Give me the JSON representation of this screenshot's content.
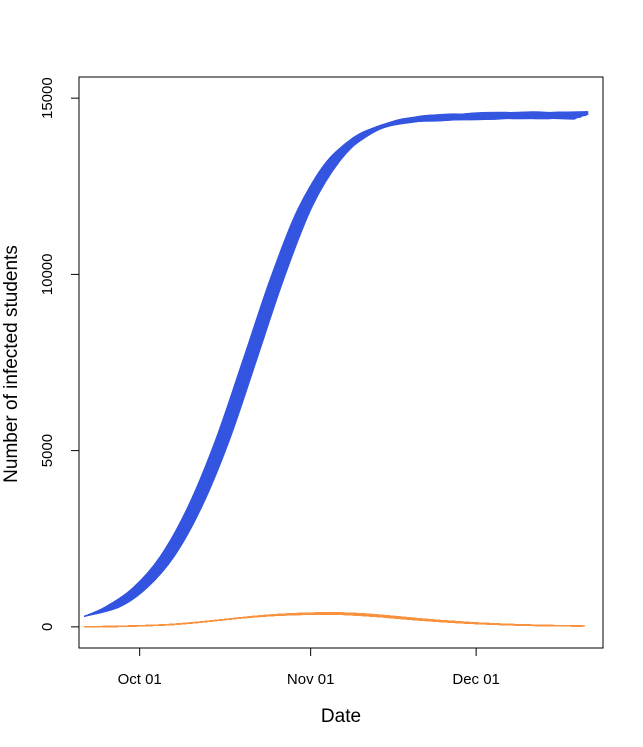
{
  "chart_data": {
    "type": "line",
    "title": "",
    "xlabel": "Date",
    "ylabel": "Number of infected students",
    "x_tick_labels": [
      "Oct 01",
      "Nov 01",
      "Dec 01"
    ],
    "x_tick_dates": [
      "2020-10-01",
      "2020-11-01",
      "2020-12-01"
    ],
    "y_ticks": [
      0,
      5000,
      10000,
      15000
    ],
    "xlim": [
      "2020-09-20",
      "2020-12-24"
    ],
    "ylim": [
      -600,
      15600
    ],
    "grid": false,
    "legend": "none",
    "x": [
      "2020-09-21",
      "2020-09-26",
      "2020-10-01",
      "2020-10-06",
      "2020-10-11",
      "2020-10-16",
      "2020-10-21",
      "2020-10-26",
      "2020-10-31",
      "2020-11-05",
      "2020-11-10",
      "2020-11-15",
      "2020-11-20",
      "2020-11-25",
      "2020-11-30",
      "2020-12-05",
      "2020-12-10",
      "2020-12-15",
      "2020-12-20"
    ],
    "series": [
      {
        "color": "#3556e0",
        "run_count": 100,
        "values": [
          300,
          560,
          1100,
          2000,
          3400,
          5300,
          7600,
          9900,
          11900,
          13200,
          13900,
          14250,
          14400,
          14450,
          14480,
          14500,
          14510,
          14510,
          14510
        ]
      },
      {
        "color": "#f9923f",
        "run_count": 100,
        "values": [
          0,
          10,
          30,
          60,
          120,
          200,
          280,
          340,
          370,
          380,
          350,
          290,
          220,
          160,
          110,
          75,
          50,
          35,
          25
        ]
      }
    ]
  }
}
